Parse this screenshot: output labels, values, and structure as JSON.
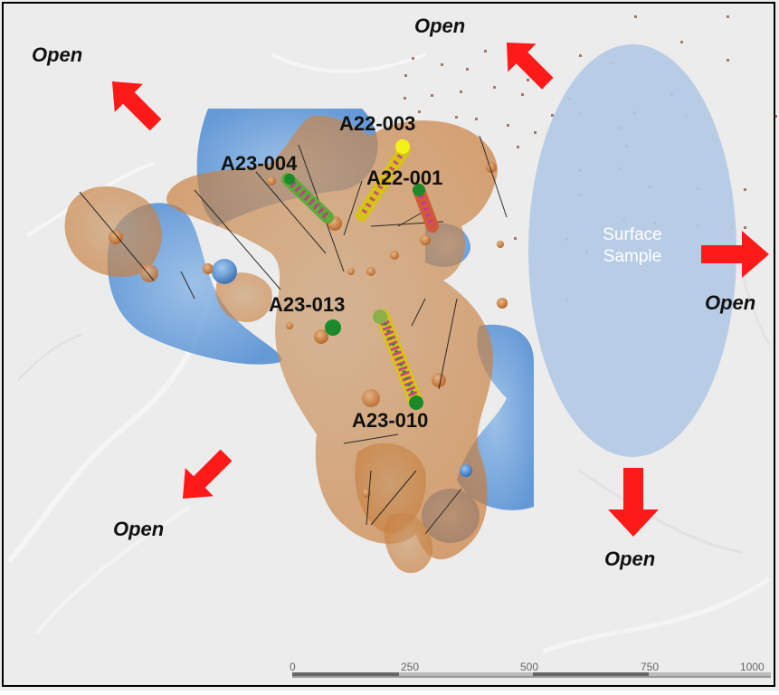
{
  "hole_labels": {
    "a22_003": "A22-003",
    "a23_004": "A23-004",
    "a22_001": "A22-001",
    "a23_013": "A23-013",
    "a23_010": "A23-010"
  },
  "open_labels": {
    "top_center": "Open",
    "top_left": "Open",
    "right": "Open",
    "bottom_left": "Open",
    "bottom_right": "Open"
  },
  "surface_sample": {
    "line1": "Surface",
    "line2": "Sample"
  },
  "scale_bar": {
    "ticks": [
      "0",
      "250",
      "500",
      "750",
      "1000"
    ]
  },
  "colors": {
    "arrow": "#ff1a1a",
    "orange_body": "#d08a45",
    "blue_body": "#4d8fd6",
    "surface_ellipse": "#b3c9e6",
    "collar_dot": "#a07a6a"
  }
}
